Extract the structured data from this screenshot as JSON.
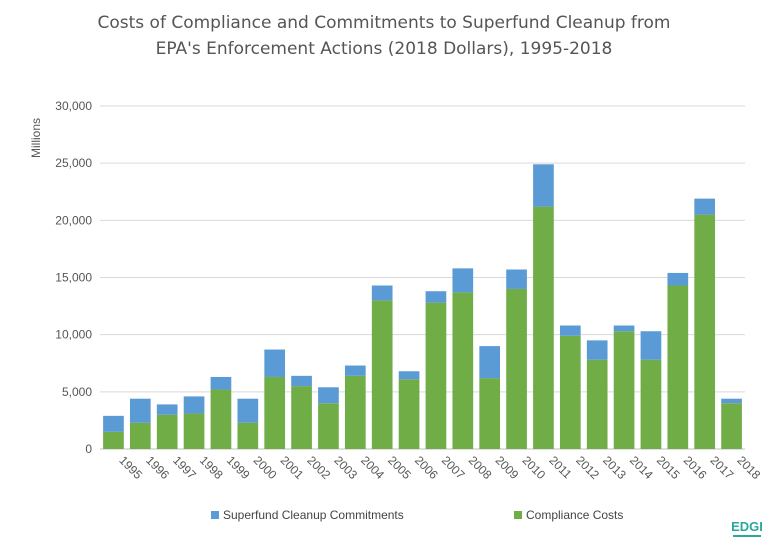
{
  "chart_data": {
    "type": "bar",
    "stacked": true,
    "title_line1": "Costs of Compliance and Commitments to Superfund Cleanup from",
    "title_line2": "EPA's Enforcement Actions (2018 Dollars), 1995-2018",
    "ylabel": "Millions",
    "xlabel": "",
    "ylim": [
      0,
      30000
    ],
    "yticks": [
      "0",
      "5,000",
      "10,000",
      "15,000",
      "20,000",
      "25,000",
      "30,000"
    ],
    "ytick_values": [
      0,
      5000,
      10000,
      15000,
      20000,
      25000,
      30000
    ],
    "grid": true,
    "legend_position": "bottom",
    "categories": [
      "1995",
      "1996",
      "1997",
      "1998",
      "1999",
      "2000",
      "2001",
      "2002",
      "2003",
      "2004",
      "2005",
      "2006",
      "2007",
      "2008",
      "2009",
      "2010",
      "2011",
      "2012",
      "2013",
      "2014",
      "2015",
      "2016",
      "2017",
      "2018"
    ],
    "series": [
      {
        "name": "Compliance Costs",
        "color": "#70ad47",
        "values": [
          1500,
          2300,
          3000,
          3100,
          5200,
          2300,
          6300,
          5500,
          4000,
          6400,
          13000,
          6100,
          12800,
          13700,
          6200,
          14000,
          21200,
          9900,
          7800,
          10300,
          7800,
          14300,
          20500,
          4000
        ]
      },
      {
        "name": "Superfund Cleanup Commitments",
        "color": "#5b9bd5",
        "values": [
          1400,
          2100,
          900,
          1500,
          1100,
          2100,
          2400,
          900,
          1400,
          900,
          1300,
          700,
          1000,
          2100,
          2800,
          1700,
          3700,
          900,
          1700,
          500,
          2500,
          1100,
          1400,
          400
        ]
      }
    ],
    "legend": [
      {
        "label": "Superfund Cleanup Commitments",
        "color": "#5b9bd5"
      },
      {
        "label": "Compliance Costs",
        "color": "#70ad47"
      }
    ]
  },
  "logo": {
    "text": "EDGI",
    "color": "#2aa89a"
  }
}
